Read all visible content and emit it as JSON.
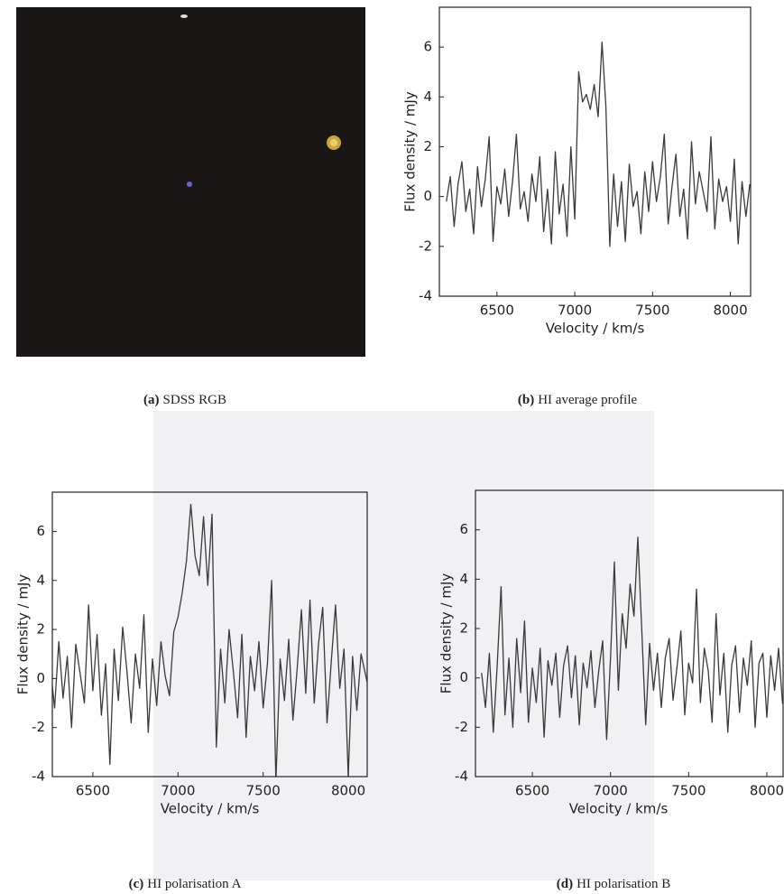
{
  "panels": [
    {
      "label": "(a)",
      "text": "SDSS RGB"
    },
    {
      "label": "(b)",
      "text": "HI average profile"
    },
    {
      "label": "(c)",
      "text": "HI polarisation A"
    },
    {
      "label": "(d)",
      "text": "HI polarisation B"
    }
  ],
  "chart_data": [
    {
      "type": "line",
      "xlabel": "Velocity / km/s",
      "ylabel": "Flux density / mJy",
      "xlim": [
        6130,
        8130
      ],
      "ylim": [
        -4,
        7.6
      ],
      "xticks": [
        6500,
        7000,
        7500,
        8000
      ],
      "yticks": [
        -4,
        -2,
        0,
        2,
        4,
        6
      ],
      "x": [
        6175,
        6200,
        6225,
        6250,
        6275,
        6300,
        6325,
        6350,
        6375,
        6400,
        6425,
        6450,
        6475,
        6500,
        6525,
        6550,
        6575,
        6600,
        6625,
        6650,
        6675,
        6700,
        6725,
        6750,
        6775,
        6800,
        6825,
        6850,
        6875,
        6900,
        6925,
        6950,
        6975,
        7000,
        7025,
        7050,
        7075,
        7100,
        7125,
        7150,
        7175,
        7200,
        7225,
        7250,
        7275,
        7300,
        7325,
        7350,
        7375,
        7400,
        7425,
        7450,
        7475,
        7500,
        7525,
        7550,
        7575,
        7600,
        7625,
        7650,
        7675,
        7700,
        7725,
        7750,
        7775,
        7800,
        7825,
        7850,
        7875,
        7900,
        7925,
        7950,
        7975,
        8000,
        8025,
        8050,
        8075,
        8100,
        8125
      ],
      "series": [
        {
          "color": "#3a3a3a",
          "values": [
            -0.2,
            0.8,
            -1.2,
            0.5,
            1.4,
            -0.6,
            0.3,
            -1.5,
            1.2,
            -0.4,
            0.7,
            2.4,
            -1.8,
            0.4,
            -0.3,
            1.1,
            -0.8,
            0.6,
            2.5,
            -0.5,
            0.2,
            -1.0,
            0.9,
            -0.2,
            1.6,
            -1.4,
            0.3,
            -1.9,
            1.8,
            -0.7,
            0.5,
            -1.6,
            2.0,
            -0.9,
            5.0,
            3.8,
            4.1,
            3.5,
            4.5,
            3.2,
            6.2,
            3.6,
            -2.0,
            0.9,
            -1.2,
            0.6,
            -1.8,
            1.3,
            -0.4,
            0.2,
            -1.5,
            1.0,
            -0.6,
            1.4,
            -0.2,
            0.8,
            2.5,
            -1.1,
            0.4,
            1.7,
            -0.8,
            0.3,
            -1.7,
            2.2,
            -0.3,
            1.0,
            0.2,
            -0.6,
            2.4,
            -1.3,
            0.7,
            -0.2,
            0.4,
            -1.0,
            1.5,
            -1.9,
            0.6,
            -0.8,
            0.5
          ]
        }
      ]
    },
    {
      "type": "line",
      "xlabel": "Velocity / km/s",
      "ylabel": "Flux density / mJy",
      "xlim": [
        6262,
        8111
      ],
      "ylim": [
        -4,
        7.6
      ],
      "xticks": [
        6500,
        7000,
        7500,
        8000
      ],
      "yticks": [
        -4,
        -2,
        0,
        2,
        4,
        6
      ],
      "x": [
        6175,
        6200,
        6225,
        6250,
        6275,
        6300,
        6325,
        6350,
        6375,
        6400,
        6425,
        6450,
        6475,
        6500,
        6525,
        6550,
        6575,
        6600,
        6625,
        6650,
        6675,
        6700,
        6725,
        6750,
        6775,
        6800,
        6825,
        6850,
        6875,
        6900,
        6925,
        6950,
        6975,
        7000,
        7025,
        7050,
        7075,
        7100,
        7125,
        7150,
        7175,
        7200,
        7225,
        7250,
        7275,
        7300,
        7325,
        7350,
        7375,
        7400,
        7425,
        7450,
        7475,
        7500,
        7525,
        7550,
        7575,
        7600,
        7625,
        7650,
        7675,
        7700,
        7725,
        7750,
        7775,
        7800,
        7825,
        7850,
        7875,
        7900,
        7925,
        7950,
        7975,
        8000,
        8025,
        8050,
        8075,
        8100,
        8125
      ],
      "series": [
        {
          "color": "#3a3a3a",
          "values": [
            1.0,
            -1.6,
            2.0,
            0.5,
            -1.2,
            1.5,
            -0.8,
            0.9,
            -2.0,
            1.4,
            0.2,
            -1.0,
            3.0,
            -0.5,
            1.8,
            -1.5,
            0.6,
            -3.5,
            1.2,
            -0.9,
            2.1,
            0.3,
            -1.8,
            1.0,
            -0.4,
            2.6,
            -2.2,
            0.8,
            -1.1,
            1.5,
            0.1,
            -0.7,
            1.9,
            2.5,
            3.5,
            4.8,
            7.1,
            5.0,
            4.2,
            6.6,
            3.8,
            6.7,
            -2.8,
            1.2,
            -1.0,
            2.0,
            0.3,
            -1.6,
            1.8,
            -2.4,
            0.9,
            -0.5,
            1.5,
            -1.2,
            0.6,
            4.0,
            -4.2,
            0.8,
            -0.9,
            1.6,
            -1.7,
            0.4,
            2.8,
            -0.6,
            3.2,
            -1.0,
            1.4,
            2.9,
            -1.8,
            0.7,
            3.0,
            -0.4,
            1.2,
            -4.0,
            0.9,
            -1.3,
            1.0,
            0.2,
            -0.6
          ]
        }
      ]
    },
    {
      "type": "line",
      "xlabel": "Velocity / km/s",
      "ylabel": "Flux density / mJy",
      "xlim": [
        6136,
        8104
      ],
      "ylim": [
        -4,
        7.6
      ],
      "xticks": [
        6500,
        7000,
        7500,
        8000
      ],
      "yticks": [
        -4,
        -2,
        0,
        2,
        4,
        6
      ],
      "x": [
        6175,
        6200,
        6225,
        6250,
        6275,
        6300,
        6325,
        6350,
        6375,
        6400,
        6425,
        6450,
        6475,
        6500,
        6525,
        6550,
        6575,
        6600,
        6625,
        6650,
        6675,
        6700,
        6725,
        6750,
        6775,
        6800,
        6825,
        6850,
        6875,
        6900,
        6925,
        6950,
        6975,
        7000,
        7025,
        7050,
        7075,
        7100,
        7125,
        7150,
        7175,
        7200,
        7225,
        7250,
        7275,
        7300,
        7325,
        7350,
        7375,
        7400,
        7425,
        7450,
        7475,
        7500,
        7525,
        7550,
        7575,
        7600,
        7625,
        7650,
        7675,
        7700,
        7725,
        7750,
        7775,
        7800,
        7825,
        7850,
        7875,
        7900,
        7925,
        7950,
        7975,
        8000,
        8025,
        8050,
        8075,
        8100,
        8125
      ],
      "series": [
        {
          "color": "#3a3a3a",
          "values": [
            0.2,
            -1.2,
            1.0,
            -2.2,
            0.5,
            3.7,
            -1.5,
            0.8,
            -2.0,
            1.6,
            -0.6,
            2.3,
            -1.8,
            0.4,
            -1.0,
            1.2,
            -2.4,
            0.7,
            -0.3,
            1.0,
            -1.6,
            0.5,
            1.3,
            -0.8,
            0.9,
            -1.9,
            0.6,
            -0.4,
            1.1,
            -1.2,
            0.3,
            1.5,
            -2.5,
            0.8,
            4.7,
            -0.5,
            2.6,
            1.2,
            3.8,
            2.5,
            5.7,
            1.9,
            -1.9,
            1.4,
            -0.5,
            1.0,
            -1.2,
            0.8,
            1.6,
            -0.9,
            0.4,
            1.9,
            -1.5,
            0.6,
            -0.2,
            3.6,
            -1.0,
            1.2,
            0.3,
            -1.8,
            2.6,
            -0.7,
            1.0,
            -2.2,
            0.5,
            1.3,
            -1.4,
            0.8,
            -0.3,
            1.5,
            -2.0,
            0.6,
            1.0,
            -1.6,
            0.9,
            -0.5,
            1.2,
            -1.0,
            -1.4
          ]
        }
      ]
    }
  ]
}
